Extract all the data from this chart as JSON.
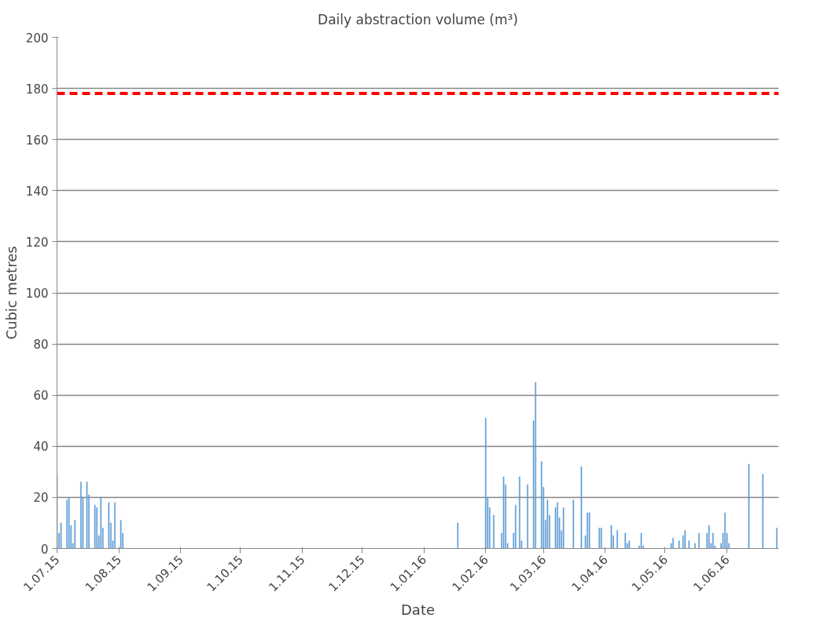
{
  "chart_data": {
    "type": "bar",
    "title": "Daily abstraction volume (m³)",
    "xlabel": "Date",
    "ylabel": "Cubic metres",
    "x": [
      "2015-07-01",
      "2015-07-02",
      "2015-07-03",
      "2015-07-06",
      "2015-07-07",
      "2015-07-08",
      "2015-07-09",
      "2015-07-10",
      "2015-07-13",
      "2015-07-14",
      "2015-07-16",
      "2015-07-17",
      "2015-07-20",
      "2015-07-21",
      "2015-07-22",
      "2015-07-23",
      "2015-07-24",
      "2015-07-27",
      "2015-07-28",
      "2015-07-29",
      "2015-07-30",
      "2015-08-02",
      "2015-08-03",
      "2016-01-18",
      "2016-02-01",
      "2016-02-02",
      "2016-02-03",
      "2016-02-05",
      "2016-02-09",
      "2016-02-10",
      "2016-02-11",
      "2016-02-12",
      "2016-02-15",
      "2016-02-16",
      "2016-02-18",
      "2016-02-19",
      "2016-02-22",
      "2016-02-25",
      "2016-02-26",
      "2016-02-29",
      "2016-03-01",
      "2016-03-02",
      "2016-03-03",
      "2016-03-04",
      "2016-03-07",
      "2016-03-08",
      "2016-03-09",
      "2016-03-10",
      "2016-03-11",
      "2016-03-16",
      "2016-03-20",
      "2016-03-22",
      "2016-03-23",
      "2016-03-24",
      "2016-03-29",
      "2016-03-30",
      "2016-04-04",
      "2016-04-05",
      "2016-04-07",
      "2016-04-11",
      "2016-04-12",
      "2016-04-13",
      "2016-04-18",
      "2016-04-19",
      "2016-04-20",
      "2016-05-04",
      "2016-05-05",
      "2016-05-08",
      "2016-05-10",
      "2016-05-11",
      "2016-05-13",
      "2016-05-16",
      "2016-05-18",
      "2016-05-22",
      "2016-05-23",
      "2016-05-24",
      "2016-05-25",
      "2016-05-26",
      "2016-05-29",
      "2016-05-30",
      "2016-05-31",
      "2016-06-01",
      "2016-06-02",
      "2016-06-12",
      "2016-06-19",
      "2016-06-26"
    ],
    "values": [
      29,
      6,
      10,
      19,
      20,
      9,
      2,
      11,
      26,
      20,
      26,
      21,
      17,
      16,
      5,
      20,
      8,
      18,
      10,
      3,
      18,
      11,
      6,
      10,
      51,
      20,
      16,
      13,
      6,
      28,
      25,
      2,
      6,
      17,
      28,
      3,
      25,
      50,
      65,
      34,
      24,
      11,
      19,
      13,
      16,
      18,
      12,
      7,
      16,
      19,
      32,
      5,
      14,
      14,
      8,
      8,
      9,
      5,
      7,
      6,
      2,
      3,
      1,
      6,
      1,
      2,
      4,
      3,
      5,
      7,
      3,
      2,
      6,
      6,
      9,
      2,
      6,
      1,
      2,
      6,
      14,
      6,
      2,
      33,
      29,
      8
    ],
    "color": "#5b9bd5",
    "xlim": [
      "2015-07-01",
      "2016-06-27"
    ],
    "xticks": [
      {
        "value": "2015-07-01",
        "label": "1.07.15"
      },
      {
        "value": "2015-08-01",
        "label": "1.08.15"
      },
      {
        "value": "2015-09-01",
        "label": "1.09.15"
      },
      {
        "value": "2015-10-01",
        "label": "1.10.15"
      },
      {
        "value": "2015-11-01",
        "label": "1.11.15"
      },
      {
        "value": "2015-12-01",
        "label": "1.12.15"
      },
      {
        "value": "2016-01-01",
        "label": "1.01.16"
      },
      {
        "value": "2016-02-01",
        "label": "1.02.16"
      },
      {
        "value": "2016-03-01",
        "label": "1.03.16"
      },
      {
        "value": "2016-04-01",
        "label": "1.04.16"
      },
      {
        "value": "2016-05-01",
        "label": "1.05.16"
      },
      {
        "value": "2016-06-01",
        "label": "1.06.16"
      }
    ],
    "ylim": [
      0,
      200
    ],
    "yticks": [
      0,
      20,
      40,
      60,
      80,
      100,
      120,
      140,
      160,
      180,
      200
    ],
    "grid": "y",
    "ref_lines": [
      {
        "axis": "y",
        "value": 178,
        "color": "#ff0000",
        "line_style": "dashed"
      }
    ]
  }
}
